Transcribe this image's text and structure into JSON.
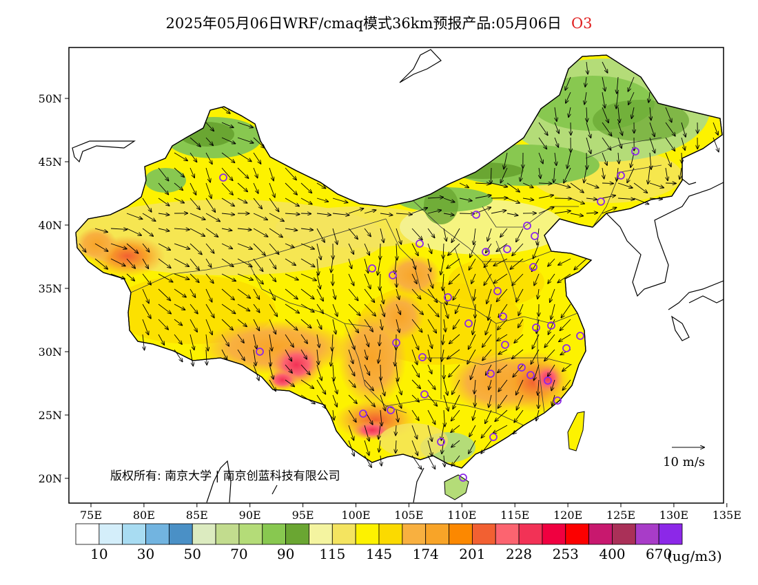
{
  "title": {
    "main": "2025年05月06日WRF/cmaq模式36km预报产品:05月06日",
    "species": "O3"
  },
  "map": {
    "lon_ticks": [
      "75E",
      "80E",
      "85E",
      "90E",
      "95E",
      "100E",
      "105E",
      "110E",
      "115E",
      "120E",
      "125E",
      "130E",
      "135E"
    ],
    "lat_ticks": [
      "50N",
      "45N",
      "40N",
      "35N",
      "30N",
      "25N",
      "20N"
    ],
    "copyright": "版权所有: 南京大学 | 南京创蓝科技有限公司",
    "wind_reference": "10 m/s"
  },
  "colorbar": {
    "labels": [
      "10",
      "30",
      "50",
      "70",
      "90",
      "115",
      "145",
      "174",
      "201",
      "228",
      "253",
      "400",
      "670"
    ],
    "units": "(ug/m3)",
    "colors": [
      "#ffffff",
      "#d4eefa",
      "#a8dcf2",
      "#72b4e0",
      "#4a90c6",
      "#dcebc0",
      "#c2dc8e",
      "#b4dc78",
      "#88c850",
      "#6aa632",
      "#f4f4a0",
      "#f4e460",
      "#fdf200",
      "#fbda00",
      "#f8b040",
      "#f8a428",
      "#fc8800",
      "#f26032",
      "#fc6470",
      "#f23256",
      "#f00040",
      "#fc0000",
      "#c8186e",
      "#aa3058",
      "#a83cc8",
      "#8c28e8"
    ]
  },
  "city_markers": 36
}
